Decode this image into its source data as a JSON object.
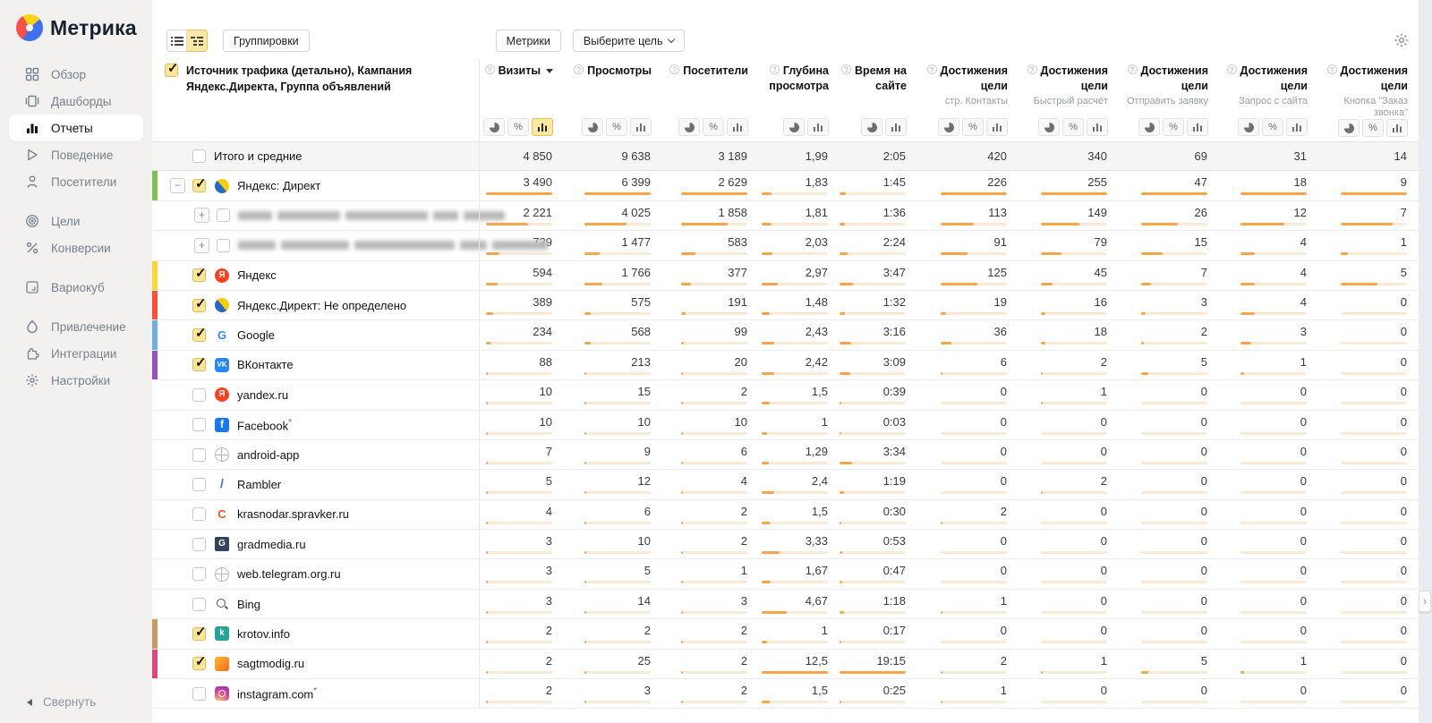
{
  "sidebar": {
    "logo_text": "Метрика",
    "items": [
      {
        "label": "Обзор",
        "icon": "overview",
        "active": false,
        "gap_before": false
      },
      {
        "label": "Дашборды",
        "icon": "dashboards",
        "active": false,
        "gap_before": false
      },
      {
        "label": "Отчеты",
        "icon": "reports",
        "active": true,
        "gap_before": false
      },
      {
        "label": "Поведение",
        "icon": "behavior",
        "active": false,
        "gap_before": false
      },
      {
        "label": "Посетители",
        "icon": "visitors",
        "active": false,
        "gap_before": false
      },
      {
        "label": "Цели",
        "icon": "goals",
        "active": false,
        "gap_before": true
      },
      {
        "label": "Конверсии",
        "icon": "conversions",
        "active": false,
        "gap_before": false
      },
      {
        "label": "Вариокуб",
        "icon": "variocube",
        "active": false,
        "gap_before": true
      },
      {
        "label": "Привлечение",
        "icon": "attraction",
        "active": false,
        "gap_before": true
      },
      {
        "label": "Интеграции",
        "icon": "integrations",
        "active": false,
        "gap_before": false
      },
      {
        "label": "Настройки",
        "icon": "settings",
        "active": false,
        "gap_before": false
      }
    ],
    "collapse_label": "Свернуть"
  },
  "toolbar": {
    "groupings_label": "Группировки",
    "metrics_label": "Метрики",
    "goal_select_label": "Выберите цель"
  },
  "table": {
    "dimension_header": "Источник трафика (детально), Кампания Яндекс.Директа, Группа объявлений",
    "columns": [
      {
        "label": "Визиты",
        "sublabel": "",
        "buttons": [
          "pie",
          "percent",
          "bars"
        ],
        "active_button": "bars",
        "sorted": true
      },
      {
        "label": "Просмотры",
        "sublabel": "",
        "buttons": [
          "pie",
          "percent",
          "bars"
        ],
        "active_button": "",
        "sorted": false
      },
      {
        "label": "Посетители",
        "sublabel": "",
        "buttons": [
          "pie",
          "percent",
          "bars"
        ],
        "active_button": "",
        "sorted": false
      },
      {
        "label": "Глубина просмотра",
        "sublabel": "",
        "buttons": [
          "pie",
          "bars"
        ],
        "active_button": "",
        "sorted": false
      },
      {
        "label": "Время на сайте",
        "sublabel": "",
        "buttons": [
          "pie",
          "bars"
        ],
        "active_button": "",
        "sorted": false
      },
      {
        "label": "Достижения цели",
        "sublabel": "стр. Контакты",
        "buttons": [
          "pie",
          "percent",
          "bars"
        ],
        "active_button": "",
        "sorted": false
      },
      {
        "label": "Достижения цели",
        "sublabel": "Быстрый расчёт",
        "buttons": [
          "pie",
          "percent",
          "bars"
        ],
        "active_button": "",
        "sorted": false
      },
      {
        "label": "Достижения цели",
        "sublabel": "Отправить заявку",
        "buttons": [
          "pie",
          "percent",
          "bars"
        ],
        "active_button": "",
        "sorted": false
      },
      {
        "label": "Достижения цели",
        "sublabel": "Запрос с сайта",
        "buttons": [
          "pie",
          "percent",
          "bars"
        ],
        "active_button": "",
        "sorted": false
      },
      {
        "label": "Достижения цели",
        "sublabel": "Кнопка \"Заказ звонка\"",
        "buttons": [
          "pie",
          "percent",
          "bars"
        ],
        "active_button": "",
        "sorted": false
      }
    ],
    "totals": {
      "label": "Итого и средние",
      "values": [
        "4 850",
        "9 638",
        "3 189",
        "1,99",
        "2:05",
        "420",
        "340",
        "69",
        "31",
        "14"
      ]
    },
    "rows": [
      {
        "label": "Яндекс: Директ",
        "icon": "yandex-direct",
        "bar_color": "#7dc353",
        "checked": true,
        "expand": "minus",
        "child": false,
        "blurred": false,
        "asterisk": false,
        "values": [
          "3 490",
          "6 399",
          "2 629",
          "1,83",
          "1:45",
          "226",
          "255",
          "47",
          "18",
          "9"
        ]
      },
      {
        "label": "",
        "icon": "",
        "bar_color": "",
        "checked": false,
        "expand": "plus",
        "child": true,
        "blurred": true,
        "asterisk": false,
        "values": [
          "2 221",
          "4 025",
          "1 858",
          "1,81",
          "1:36",
          "113",
          "149",
          "26",
          "12",
          "7"
        ]
      },
      {
        "label": "",
        "icon": "",
        "bar_color": "",
        "checked": false,
        "expand": "plus",
        "child": true,
        "blurred": true,
        "asterisk": false,
        "values": [
          "729",
          "1 477",
          "583",
          "2,03",
          "2:24",
          "91",
          "79",
          "15",
          "4",
          "1"
        ]
      },
      {
        "label": "Яндекс",
        "icon": "yandex",
        "bar_color": "#ffd43b",
        "checked": true,
        "expand": "",
        "child": false,
        "blurred": false,
        "asterisk": false,
        "values": [
          "594",
          "1 766",
          "377",
          "2,97",
          "3:47",
          "125",
          "45",
          "7",
          "4",
          "5"
        ]
      },
      {
        "label": "Яндекс.Директ: Не определено",
        "icon": "yandex-direct",
        "bar_color": "#fc4f35",
        "checked": true,
        "expand": "",
        "child": false,
        "blurred": false,
        "asterisk": false,
        "values": [
          "389",
          "575",
          "191",
          "1,48",
          "1:32",
          "19",
          "16",
          "3",
          "4",
          "0"
        ]
      },
      {
        "label": "Google",
        "icon": "google",
        "bar_color": "#6bb1e3",
        "checked": true,
        "expand": "",
        "child": false,
        "blurred": false,
        "asterisk": false,
        "values": [
          "234",
          "568",
          "99",
          "2,43",
          "3:16",
          "36",
          "18",
          "2",
          "3",
          "0"
        ]
      },
      {
        "label": "ВКонтакте",
        "icon": "vk",
        "bar_color": "#9a4fc0",
        "checked": true,
        "expand": "",
        "child": false,
        "blurred": false,
        "asterisk": false,
        "values": [
          "88",
          "213",
          "20",
          "2,42",
          "3:09",
          "6",
          "2",
          "5",
          "1",
          "0"
        ]
      },
      {
        "label": "yandex.ru",
        "icon": "yandex",
        "bar_color": "",
        "checked": false,
        "expand": "",
        "child": false,
        "blurred": false,
        "asterisk": false,
        "values": [
          "10",
          "15",
          "2",
          "1,5",
          "0:39",
          "0",
          "1",
          "0",
          "0",
          "0"
        ]
      },
      {
        "label": "Facebook",
        "icon": "facebook",
        "bar_color": "",
        "checked": false,
        "expand": "",
        "child": false,
        "blurred": false,
        "asterisk": true,
        "values": [
          "10",
          "10",
          "10",
          "1",
          "0:03",
          "0",
          "0",
          "0",
          "0",
          "0"
        ]
      },
      {
        "label": "android-app",
        "icon": "globe",
        "bar_color": "",
        "checked": false,
        "expand": "",
        "child": false,
        "blurred": false,
        "asterisk": false,
        "values": [
          "7",
          "9",
          "6",
          "1,29",
          "3:34",
          "0",
          "0",
          "0",
          "0",
          "0"
        ]
      },
      {
        "label": "Rambler",
        "icon": "rambler",
        "bar_color": "",
        "checked": false,
        "expand": "",
        "child": false,
        "blurred": false,
        "asterisk": false,
        "values": [
          "5",
          "12",
          "4",
          "2,4",
          "1:19",
          "0",
          "2",
          "0",
          "0",
          "0"
        ]
      },
      {
        "label": "krasnodar.spravker.ru",
        "icon": "spravker",
        "bar_color": "",
        "checked": false,
        "expand": "",
        "child": false,
        "blurred": false,
        "asterisk": false,
        "values": [
          "4",
          "6",
          "2",
          "1,5",
          "0:30",
          "2",
          "0",
          "0",
          "0",
          "0"
        ]
      },
      {
        "label": "gradmedia.ru",
        "icon": "gradmedia",
        "bar_color": "",
        "checked": false,
        "expand": "",
        "child": false,
        "blurred": false,
        "asterisk": false,
        "values": [
          "3",
          "10",
          "2",
          "3,33",
          "0:53",
          "0",
          "0",
          "0",
          "0",
          "0"
        ]
      },
      {
        "label": "web.telegram.org.ru",
        "icon": "globe",
        "bar_color": "",
        "checked": false,
        "expand": "",
        "child": false,
        "blurred": false,
        "asterisk": false,
        "values": [
          "3",
          "5",
          "1",
          "1,67",
          "0:47",
          "0",
          "0",
          "0",
          "0",
          "0"
        ]
      },
      {
        "label": "Bing",
        "icon": "search",
        "bar_color": "",
        "checked": false,
        "expand": "",
        "child": false,
        "blurred": false,
        "asterisk": false,
        "values": [
          "3",
          "14",
          "3",
          "4,67",
          "1:18",
          "1",
          "0",
          "0",
          "0",
          "0"
        ]
      },
      {
        "label": "krotov.info",
        "icon": "krotov",
        "bar_color": "#cb9b62",
        "checked": true,
        "expand": "",
        "child": false,
        "blurred": false,
        "asterisk": false,
        "values": [
          "2",
          "2",
          "2",
          "1",
          "0:17",
          "0",
          "0",
          "0",
          "0",
          "0"
        ]
      },
      {
        "label": "sagtmodig.ru",
        "icon": "sagtmodig",
        "bar_color": "#e0447c",
        "checked": true,
        "expand": "",
        "child": false,
        "blurred": false,
        "asterisk": false,
        "values": [
          "2",
          "25",
          "2",
          "12,5",
          "19:15",
          "2",
          "1",
          "5",
          "1",
          "0"
        ]
      },
      {
        "label": "instagram.com",
        "icon": "instagram",
        "bar_color": "",
        "checked": false,
        "expand": "",
        "child": false,
        "blurred": false,
        "asterisk": true,
        "values": [
          "2",
          "3",
          "2",
          "1,5",
          "0:25",
          "1",
          "0",
          "0",
          "0",
          "0"
        ]
      }
    ]
  },
  "colors": {
    "accent_yellow": "#fbe9a3",
    "bar_fill": "#f8a44b",
    "bar_track": "#fbead6",
    "sidebar_bg": "#f2f1ef",
    "right_strip_bg": "#e9edf2"
  },
  "icons": {
    "list-view-icon": "list rows",
    "tree-view-icon": "tree rows",
    "pie-icon": "◕",
    "percent-icon": "%",
    "bars-icon": "ılı",
    "question-icon": "?",
    "gear-icon": "⚙",
    "chevron-down-icon": "⌄",
    "sort-desc-icon": "▾",
    "collapse-arrow-icon": "◂",
    "scroll-next-icon": "›",
    "checkmark-icon": "✓",
    "plus-icon": "+",
    "minus-icon": "−"
  }
}
